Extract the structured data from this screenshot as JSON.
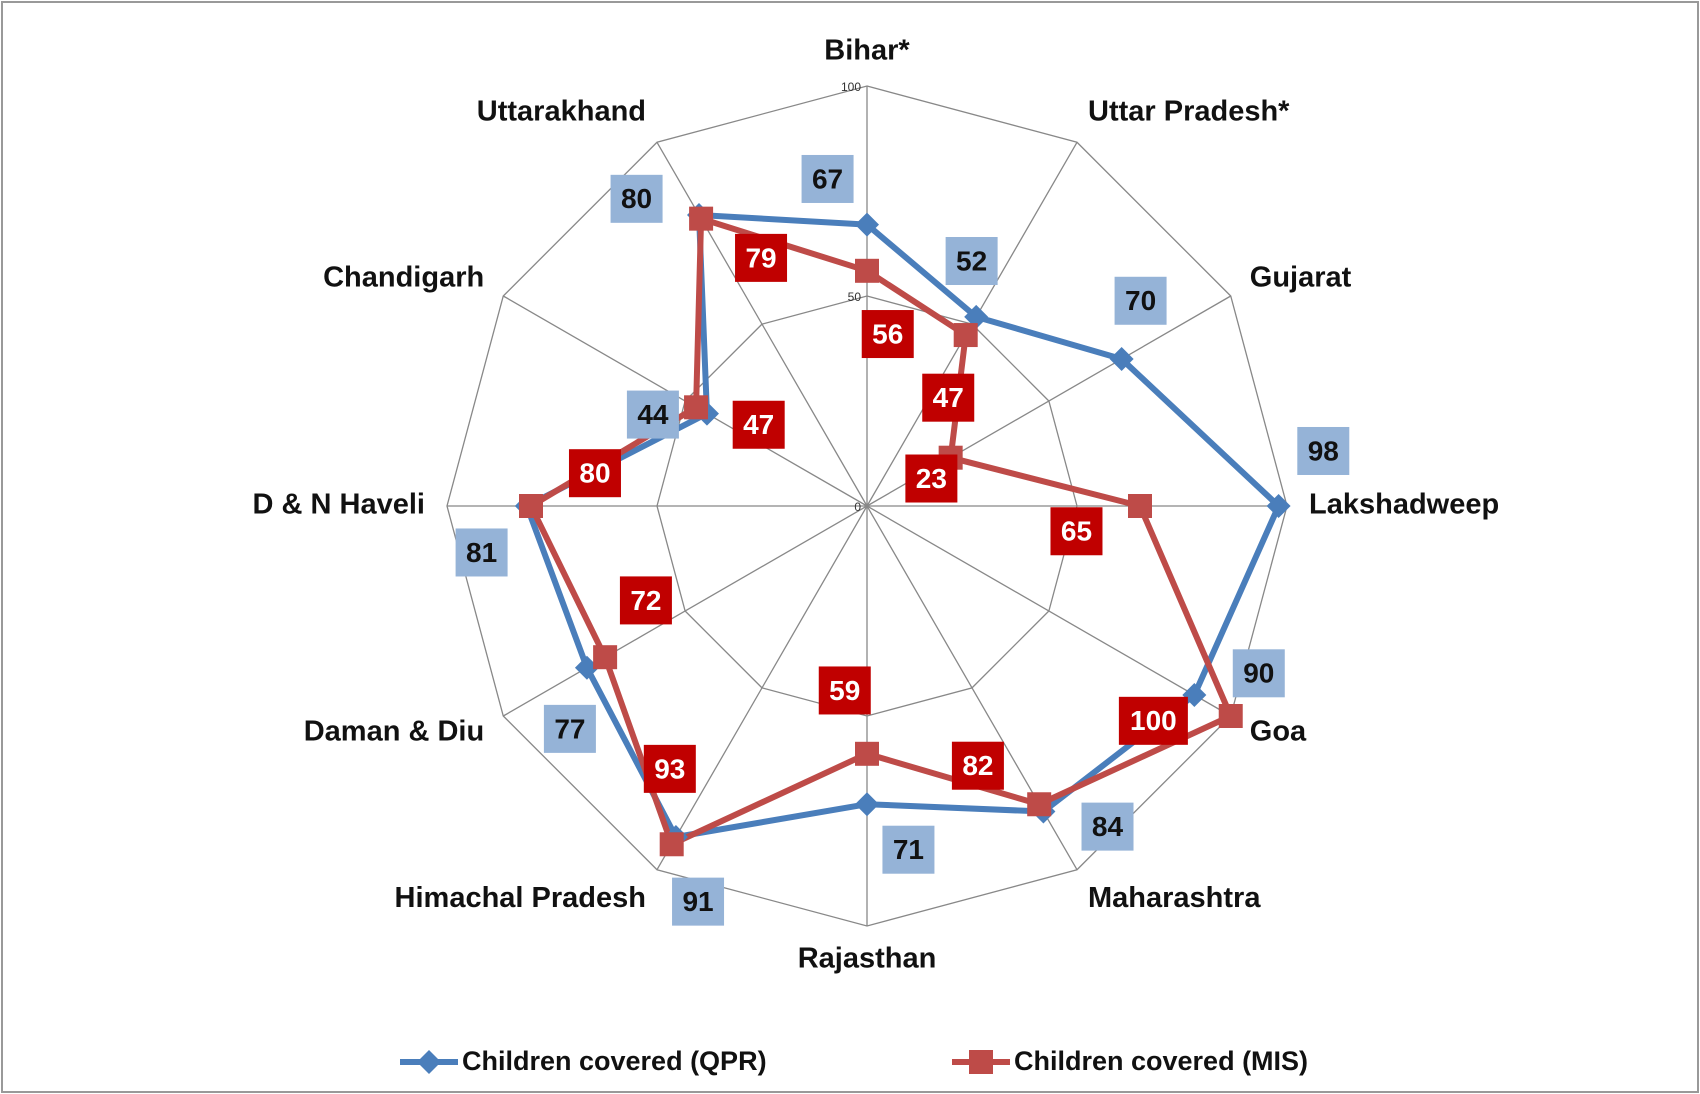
{
  "chart_data": {
    "type": "radar",
    "categories": [
      "Bihar*",
      "Uttar Pradesh*",
      "Gujarat",
      "Lakshadweep",
      "Goa",
      "Maharashtra",
      "Rajasthan",
      "Himachal Pradesh",
      "Daman & Diu",
      "D & N Haveli",
      "Chandigarh",
      "Uttarakhand"
    ],
    "series": [
      {
        "name": "Children covered (QPR)",
        "color": "#4a7ebb",
        "label_color": "#95b3d7",
        "marker": "diamond",
        "values": [
          67,
          52,
          70,
          98,
          90,
          84,
          71,
          91,
          77,
          81,
          44,
          80
        ]
      },
      {
        "name": "Children covered (MIS)",
        "color": "#be4b48",
        "label_color": "#c00000",
        "marker": "square",
        "values": [
          56,
          47,
          23,
          65,
          100,
          82,
          59,
          93,
          72,
          80,
          47,
          79
        ]
      }
    ],
    "ylim": [
      0,
      100
    ],
    "yticks": [
      0,
      50,
      100
    ],
    "grid": true,
    "legend": "bottom"
  }
}
